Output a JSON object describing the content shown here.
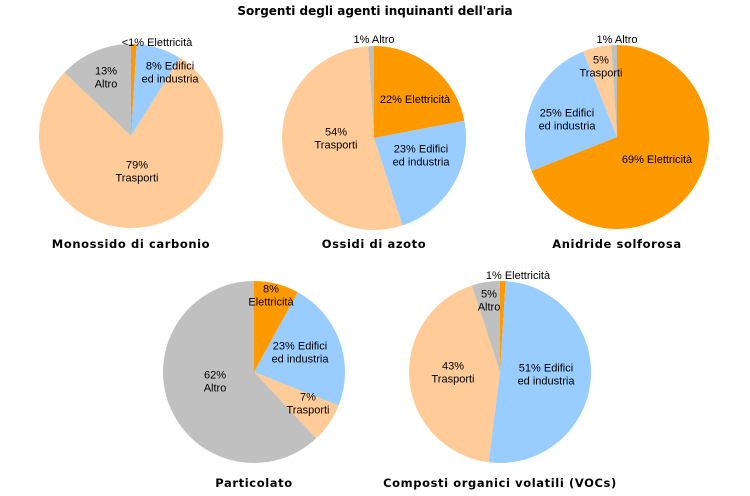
{
  "title": "Sorgenti degli agenti inquinanti dell'aria",
  "colors": {
    "Elettricità": "#ff9900",
    "Edifici ed industria": "#99ccff",
    "Trasporti": "#ffcc99",
    "Altro": "#c0c0c0"
  },
  "chart_data": [
    {
      "type": "pie",
      "title": "Monossido di carbonio",
      "slices": [
        {
          "category": "Elettricità",
          "value": 1,
          "label": [
            "<1% Elettricità"
          ]
        },
        {
          "category": "Edifici ed industria",
          "value": 8,
          "label": [
            "8% Edifici",
            "ed industria"
          ]
        },
        {
          "category": "Trasporti",
          "value": 79,
          "label": [
            "79%",
            "Trasporti"
          ]
        },
        {
          "category": "Altro",
          "value": 13,
          "label": [
            "13%",
            "Altro"
          ]
        }
      ]
    },
    {
      "type": "pie",
      "title": "Ossidi di azoto",
      "slices": [
        {
          "category": "Elettricità",
          "value": 22,
          "label": [
            "22% Elettricità"
          ]
        },
        {
          "category": "Edifici ed industria",
          "value": 23,
          "label": [
            "23% Edifici",
            "ed industria"
          ]
        },
        {
          "category": "Trasporti",
          "value": 54,
          "label": [
            "54%",
            "Trasporti"
          ]
        },
        {
          "category": "Altro",
          "value": 1,
          "label": [
            "1% Altro"
          ]
        }
      ]
    },
    {
      "type": "pie",
      "title": "Anidride solforosa",
      "slices": [
        {
          "category": "Elettricità",
          "value": 69,
          "label": [
            "69% Elettricità"
          ]
        },
        {
          "category": "Edifici ed industria",
          "value": 25,
          "label": [
            "25% Edifici",
            "ed industria"
          ]
        },
        {
          "category": "Trasporti",
          "value": 5,
          "label": [
            "5%",
            "Trasporti"
          ]
        },
        {
          "category": "Altro",
          "value": 1,
          "label": [
            "1% Altro"
          ]
        }
      ]
    },
    {
      "type": "pie",
      "title": "Particolato",
      "slices": [
        {
          "category": "Elettricità",
          "value": 8,
          "label": [
            "8%",
            "Elettricità"
          ]
        },
        {
          "category": "Edifici ed industria",
          "value": 23,
          "label": [
            "23% Edifici",
            "ed industria"
          ]
        },
        {
          "category": "Trasporti",
          "value": 7,
          "label": [
            "7%",
            "Trasporti"
          ]
        },
        {
          "category": "Altro",
          "value": 62,
          "label": [
            "62%",
            "Altro"
          ]
        }
      ]
    },
    {
      "type": "pie",
      "title": "Composti organici volatili (VOCs)",
      "slices": [
        {
          "category": "Elettricità",
          "value": 1,
          "label": [
            "1% Elettricità"
          ]
        },
        {
          "category": "Edifici ed industria",
          "value": 51,
          "label": [
            "51% Edifici",
            "ed industria"
          ]
        },
        {
          "category": "Trasporti",
          "value": 43,
          "label": [
            "43%",
            "Trasporti"
          ]
        },
        {
          "category": "Altro",
          "value": 5,
          "label": [
            "5%",
            "Altro"
          ]
        }
      ]
    }
  ]
}
